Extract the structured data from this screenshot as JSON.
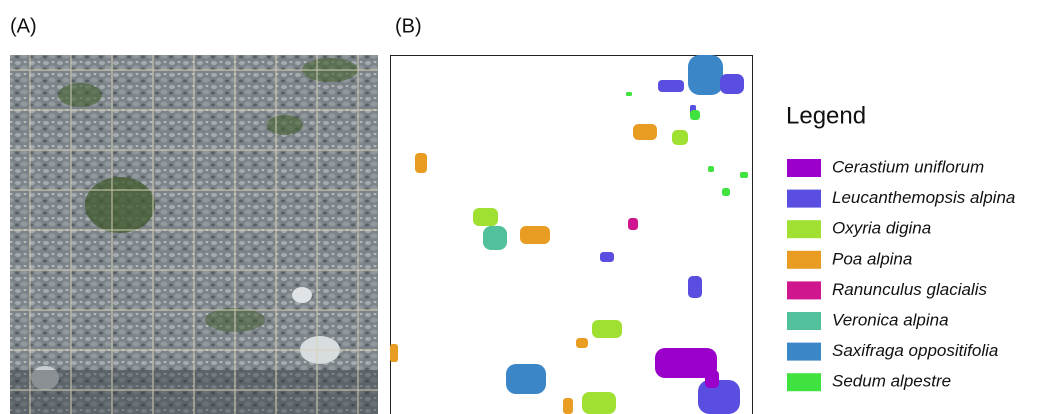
{
  "panels": {
    "a": "(A)",
    "b": "(B)"
  },
  "legend": {
    "title": "Legend",
    "items": [
      {
        "name": "Cerastium uniflorum",
        "color": "#9a00c9"
      },
      {
        "name": "Leucanthemopsis alpina",
        "color": "#5a4ee0"
      },
      {
        "name": "Oxyria digina",
        "color": "#9fe032"
      },
      {
        "name": "Poa alpina",
        "color": "#e89c22"
      },
      {
        "name": "Ranunculus glacialis",
        "color": "#d0168e"
      },
      {
        "name": "Veronica alpina",
        "color": "#52c09c"
      },
      {
        "name": "Saxifraga oppositifolia",
        "color": "#3a86c6"
      },
      {
        "name": "Sedum alpestre",
        "color": "#3fe23f"
      }
    ]
  }
}
